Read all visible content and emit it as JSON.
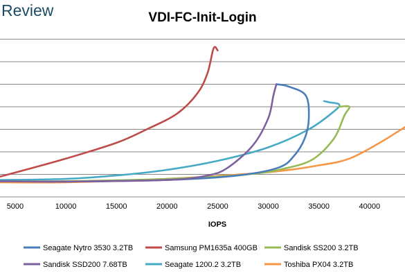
{
  "brand": "Review",
  "chart_data": {
    "type": "line",
    "title": "VDI-FC-Init-Login",
    "xlabel": "IOPS",
    "ylabel": "",
    "xlim": [
      3500,
      43500
    ],
    "x_ticks": [
      5000,
      10000,
      15000,
      20000,
      25000,
      30000,
      35000,
      40000
    ],
    "ylim": [
      0,
      8
    ],
    "y_gridlines": [
      1,
      2,
      3,
      4,
      5,
      6,
      7
    ],
    "grid": true,
    "legend_position": "bottom",
    "series": [
      {
        "name": "Seagate Nytro 3530 3.2TB",
        "color": "#4a7ebb",
        "points": [
          [
            3500,
            0.7
          ],
          [
            10000,
            0.68
          ],
          [
            20000,
            0.75
          ],
          [
            27000,
            0.95
          ],
          [
            31000,
            1.3
          ],
          [
            32500,
            1.8
          ],
          [
            33600,
            2.6
          ],
          [
            34000,
            3.5
          ],
          [
            33700,
            4.5
          ],
          [
            32000,
            4.9
          ],
          [
            30800,
            5.0
          ]
        ]
      },
      {
        "name": "Samsung PM1635a 400GB",
        "color": "#be4b48",
        "points": [
          [
            3500,
            0.9
          ],
          [
            6000,
            1.2
          ],
          [
            10000,
            1.7
          ],
          [
            15000,
            2.4
          ],
          [
            18000,
            3.0
          ],
          [
            21000,
            3.7
          ],
          [
            23000,
            4.6
          ],
          [
            24000,
            5.5
          ],
          [
            24600,
            6.6
          ],
          [
            25000,
            6.5
          ]
        ]
      },
      {
        "name": "Sandisk SS200 3.2TB",
        "color": "#98b954",
        "points": [
          [
            3500,
            0.7
          ],
          [
            10000,
            0.7
          ],
          [
            20000,
            0.8
          ],
          [
            28000,
            1.0
          ],
          [
            32000,
            1.3
          ],
          [
            34500,
            1.7
          ],
          [
            36500,
            2.6
          ],
          [
            37500,
            3.6
          ],
          [
            38000,
            4.0
          ],
          [
            37000,
            4.0
          ]
        ]
      },
      {
        "name": "Sandisk SSD200 7.68TB",
        "color": "#7d60a0",
        "points": [
          [
            3500,
            0.7
          ],
          [
            10000,
            0.68
          ],
          [
            20000,
            0.75
          ],
          [
            24000,
            0.95
          ],
          [
            26000,
            1.3
          ],
          [
            28500,
            2.3
          ],
          [
            30000,
            3.5
          ],
          [
            30500,
            4.5
          ],
          [
            30800,
            5.0
          ]
        ]
      },
      {
        "name": "Seagate 1200.2 3.2TB",
        "color": "#46aac5",
        "points": [
          [
            3500,
            0.75
          ],
          [
            10000,
            0.8
          ],
          [
            15000,
            0.95
          ],
          [
            20000,
            1.2
          ],
          [
            25000,
            1.6
          ],
          [
            30000,
            2.2
          ],
          [
            34000,
            3.0
          ],
          [
            36500,
            3.8
          ],
          [
            37000,
            4.1
          ],
          [
            36000,
            4.2
          ],
          [
            35500,
            4.25
          ]
        ]
      },
      {
        "name": "Toshiba PX04 3.2TB",
        "color": "#f79646",
        "points": [
          [
            3500,
            0.65
          ],
          [
            10000,
            0.65
          ],
          [
            20000,
            0.8
          ],
          [
            30000,
            1.1
          ],
          [
            35000,
            1.4
          ],
          [
            38000,
            1.7
          ],
          [
            41000,
            2.4
          ],
          [
            43500,
            3.1
          ]
        ]
      }
    ]
  }
}
